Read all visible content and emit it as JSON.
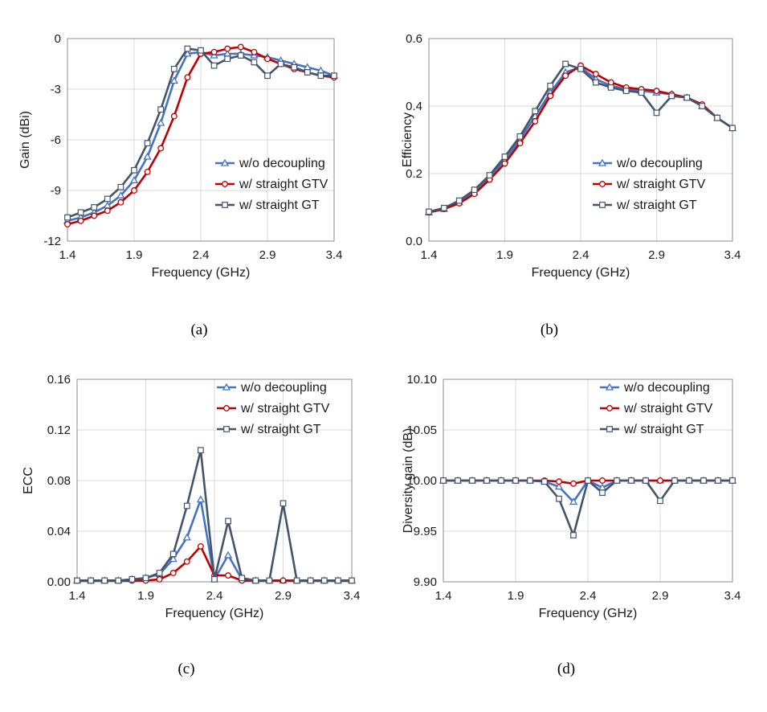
{
  "colors": {
    "w/o decoupling": "#4472C4",
    "w/ straight GTV": "#C00000",
    "w/ straight GT": "#44546A",
    "grid": "#d9d9d9",
    "frame": "#8c8c8c"
  },
  "chart_data": [
    {
      "type": "line",
      "caption": "(a)",
      "xlabel": "Frequency (GHz)",
      "ylabel": "Gain (dBi)",
      "xlim": [
        1.4,
        3.4
      ],
      "ylim": [
        -12,
        0
      ],
      "xticks": [
        "1.4",
        "1.9",
        "2.4",
        "2.9",
        "3.4"
      ],
      "yticks": [
        "-12",
        "-9",
        "-6",
        "-3",
        "0"
      ],
      "grid": true,
      "legend_position": "bottom-right",
      "x": [
        1.4,
        1.5,
        1.6,
        1.7,
        1.8,
        1.9,
        2.0,
        2.1,
        2.2,
        2.3,
        2.4,
        2.5,
        2.6,
        2.7,
        2.8,
        2.9,
        3.0,
        3.1,
        3.2,
        3.3,
        3.4
      ],
      "series": [
        {
          "name": "w/o decoupling",
          "marker": "triangle",
          "values": [
            -10.8,
            -10.6,
            -10.3,
            -9.9,
            -9.3,
            -8.4,
            -7.0,
            -5.0,
            -2.5,
            -0.9,
            -0.8,
            -1.0,
            -0.9,
            -0.9,
            -1.0,
            -1.1,
            -1.3,
            -1.5,
            -1.7,
            -1.9,
            -2.2
          ]
        },
        {
          "name": "w/ straight GTV",
          "marker": "circle",
          "values": [
            -11.0,
            -10.8,
            -10.5,
            -10.2,
            -9.7,
            -9.0,
            -7.9,
            -6.5,
            -4.6,
            -2.3,
            -0.9,
            -0.8,
            -0.6,
            -0.5,
            -0.8,
            -1.2,
            -1.5,
            -1.8,
            -2.0,
            -2.2,
            -2.3
          ]
        },
        {
          "name": "w/ straight GT",
          "marker": "square",
          "values": [
            -10.6,
            -10.3,
            -10.0,
            -9.5,
            -8.8,
            -7.8,
            -6.2,
            -4.2,
            -1.8,
            -0.6,
            -0.7,
            -1.6,
            -1.2,
            -1.0,
            -1.4,
            -2.2,
            -1.5,
            -1.7,
            -2.0,
            -2.2,
            -2.2
          ]
        }
      ]
    },
    {
      "type": "line",
      "caption": "(b)",
      "xlabel": "Frequency (GHz)",
      "ylabel": "Efficiency",
      "xlim": [
        1.4,
        3.4
      ],
      "ylim": [
        0.0,
        0.6
      ],
      "xticks": [
        "1.4",
        "1.9",
        "2.4",
        "2.9",
        "3.4"
      ],
      "yticks": [
        "0.0",
        "0.2",
        "0.4",
        "0.6"
      ],
      "grid": true,
      "legend_position": "bottom-right",
      "x": [
        1.4,
        1.5,
        1.6,
        1.7,
        1.8,
        1.9,
        2.0,
        2.1,
        2.2,
        2.3,
        2.4,
        2.5,
        2.6,
        2.7,
        2.8,
        2.9,
        3.0,
        3.1,
        3.2,
        3.3,
        3.4
      ],
      "series": [
        {
          "name": "w/o decoupling",
          "marker": "triangle",
          "values": [
            0.085,
            0.095,
            0.115,
            0.145,
            0.19,
            0.24,
            0.3,
            0.37,
            0.44,
            0.5,
            0.515,
            0.48,
            0.46,
            0.45,
            0.445,
            0.44,
            0.435,
            0.425,
            0.4,
            0.365,
            0.335
          ]
        },
        {
          "name": "w/ straight GTV",
          "marker": "circle",
          "values": [
            0.085,
            0.095,
            0.112,
            0.14,
            0.182,
            0.23,
            0.29,
            0.355,
            0.43,
            0.49,
            0.52,
            0.495,
            0.47,
            0.455,
            0.45,
            0.445,
            0.435,
            0.425,
            0.405,
            0.365,
            0.335
          ]
        },
        {
          "name": "w/ straight GT",
          "marker": "square",
          "values": [
            0.087,
            0.098,
            0.12,
            0.152,
            0.195,
            0.25,
            0.31,
            0.385,
            0.46,
            0.525,
            0.51,
            0.47,
            0.455,
            0.445,
            0.44,
            0.38,
            0.43,
            0.425,
            0.4,
            0.365,
            0.335
          ]
        }
      ]
    },
    {
      "type": "line",
      "caption": "(c)",
      "xlabel": "Frequency (GHz)",
      "ylabel": "ECC",
      "xlim": [
        1.4,
        3.4
      ],
      "ylim": [
        0.0,
        0.16
      ],
      "xticks": [
        "1.4",
        "1.9",
        "2.4",
        "2.9",
        "3.4"
      ],
      "yticks": [
        "0.00",
        "0.04",
        "0.08",
        "0.12",
        "0.16"
      ],
      "grid": true,
      "legend_position": "top-right",
      "x": [
        1.4,
        1.5,
        1.6,
        1.7,
        1.8,
        1.9,
        2.0,
        2.1,
        2.2,
        2.3,
        2.4,
        2.5,
        2.6,
        2.7,
        2.8,
        2.9,
        3.0,
        3.1,
        3.2,
        3.3,
        3.4
      ],
      "series": [
        {
          "name": "w/o decoupling",
          "marker": "triangle",
          "values": [
            0.001,
            0.001,
            0.001,
            0.001,
            0.002,
            0.003,
            0.006,
            0.018,
            0.035,
            0.065,
            0.002,
            0.021,
            0.002,
            0.001,
            0.001,
            0.001,
            0.001,
            0.001,
            0.001,
            0.001,
            0.001
          ]
        },
        {
          "name": "w/ straight GTV",
          "marker": "circle",
          "values": [
            0.001,
            0.001,
            0.001,
            0.001,
            0.001,
            0.001,
            0.002,
            0.007,
            0.016,
            0.028,
            0.005,
            0.005,
            0.001,
            0.001,
            0.001,
            0.001,
            0.001,
            0.001,
            0.001,
            0.001,
            0.001
          ]
        },
        {
          "name": "w/ straight GT",
          "marker": "square",
          "values": [
            0.001,
            0.001,
            0.001,
            0.001,
            0.002,
            0.003,
            0.007,
            0.022,
            0.06,
            0.104,
            0.002,
            0.048,
            0.003,
            0.001,
            0.001,
            0.062,
            0.001,
            0.001,
            0.001,
            0.001,
            0.001
          ]
        }
      ]
    },
    {
      "type": "line",
      "caption": "(d)",
      "xlabel": "Frequency (GHz)",
      "ylabel": "Diversity gain (dB)",
      "xlim": [
        1.4,
        3.4
      ],
      "ylim": [
        9.9,
        10.1
      ],
      "xticks": [
        "1.4",
        "1.9",
        "2.4",
        "2.9",
        "3.4"
      ],
      "yticks": [
        "9.90",
        "9.95",
        "10.00",
        "10.05",
        "10.10"
      ],
      "grid": true,
      "legend_position": "top-right",
      "x": [
        1.4,
        1.5,
        1.6,
        1.7,
        1.8,
        1.9,
        2.0,
        2.1,
        2.2,
        2.3,
        2.4,
        2.5,
        2.6,
        2.7,
        2.8,
        2.9,
        3.0,
        3.1,
        3.2,
        3.3,
        3.4
      ],
      "series": [
        {
          "name": "w/o decoupling",
          "marker": "triangle",
          "values": [
            10.0,
            10.0,
            10.0,
            10.0,
            10.0,
            10.0,
            10.0,
            9.999,
            9.994,
            9.979,
            10.0,
            9.993,
            10.0,
            10.0,
            10.0,
            10.0,
            10.0,
            10.0,
            10.0,
            10.0,
            10.0
          ]
        },
        {
          "name": "w/ straight GTV",
          "marker": "circle",
          "values": [
            10.0,
            10.0,
            10.0,
            10.0,
            10.0,
            10.0,
            10.0,
            10.0,
            9.999,
            9.997,
            10.0,
            10.0,
            10.0,
            10.0,
            10.0,
            10.0,
            10.0,
            10.0,
            10.0,
            10.0,
            10.0
          ]
        },
        {
          "name": "w/ straight GT",
          "marker": "square",
          "values": [
            10.0,
            10.0,
            10.0,
            10.0,
            10.0,
            10.0,
            10.0,
            9.999,
            9.982,
            9.946,
            10.0,
            9.988,
            10.0,
            10.0,
            10.0,
            9.98,
            10.0,
            10.0,
            10.0,
            10.0,
            10.0
          ]
        }
      ]
    }
  ]
}
